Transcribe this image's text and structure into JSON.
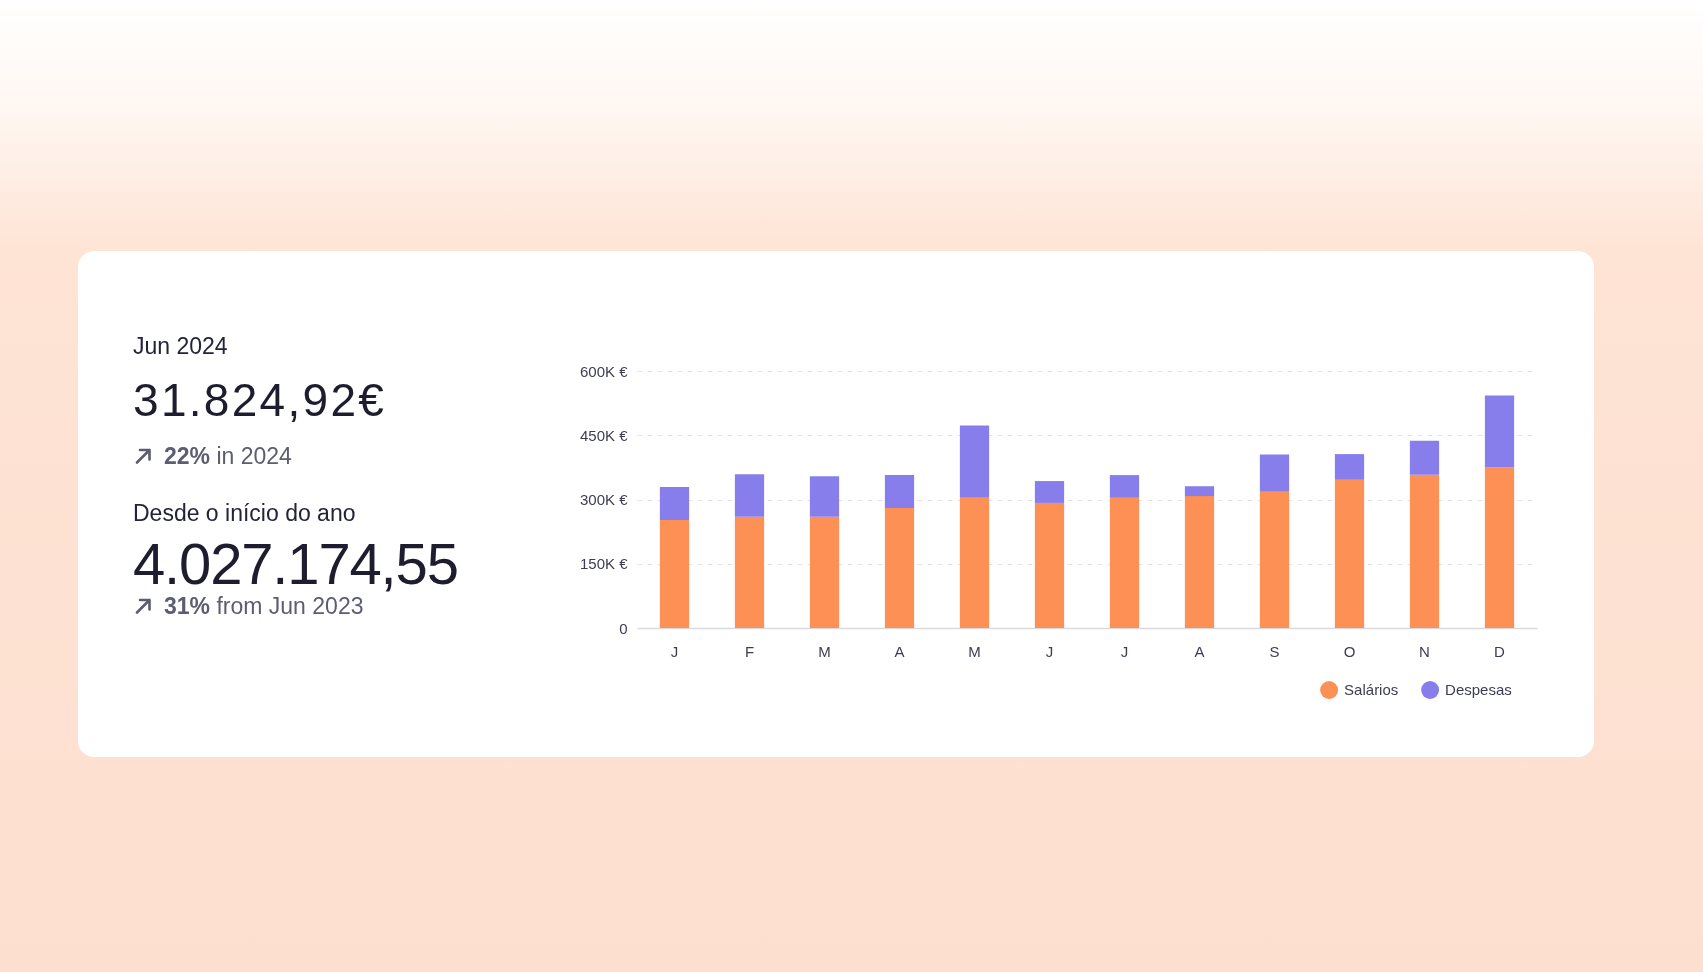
{
  "chart_data": [
    {
      "type": "other",
      "annotations": [
        "Jun 2024",
        "31.824,92€",
        "22% in 2024",
        "Desde o início do ano",
        "4.027.174,55",
        "31% from Jun 2023"
      ]
    },
    {
      "type": "bar",
      "stacked": true,
      "categories": [
        "J",
        "F",
        "M",
        "A",
        "M",
        "J",
        "J",
        "A",
        "S",
        "O",
        "N",
        "D"
      ],
      "series": [
        {
          "name": "Salários",
          "color": "#fd9054",
          "values": [
            252,
            260,
            260,
            280,
            304,
            292,
            304,
            308,
            318,
            346,
            358,
            375
          ]
        },
        {
          "name": "Despesas",
          "color": "#877eec",
          "values": [
            77,
            99,
            94,
            77,
            169,
            51,
            53,
            23,
            87,
            60,
            79,
            168
          ]
        }
      ],
      "ylim": [
        0,
        600
      ],
      "yticks": [
        0,
        {
          "value": 150,
          "label": "150K €"
        },
        {
          "value": 300,
          "label": "300K €"
        },
        {
          "value": 450,
          "label": "450K €"
        },
        {
          "value": 600,
          "label": "600K €"
        }
      ],
      "grid": "y",
      "legend": "bottom right"
    }
  ]
}
